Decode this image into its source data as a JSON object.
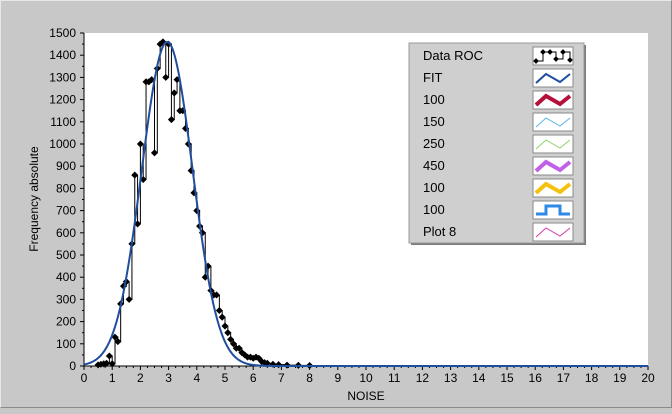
{
  "chart_data": {
    "type": "line",
    "xlabel": "NOISE",
    "ylabel": "Frequency absolute",
    "xlim": [
      0,
      20
    ],
    "ylim": [
      0,
      1500
    ],
    "xticks": [
      0,
      1,
      2,
      3,
      4,
      5,
      6,
      7,
      8,
      9,
      10,
      11,
      12,
      13,
      14,
      15,
      16,
      17,
      18,
      19,
      20
    ],
    "yticks": [
      0,
      100,
      200,
      300,
      400,
      500,
      600,
      700,
      800,
      900,
      1000,
      1100,
      1200,
      1300,
      1400,
      1500
    ],
    "legend_position": "top-right",
    "grid": false,
    "series": [
      {
        "name": "Data ROC",
        "color": "#000000",
        "style": "step-markers",
        "x": [
          0.5,
          0.6,
          0.7,
          0.8,
          0.9,
          1.0,
          1.1,
          1.2,
          1.3,
          1.4,
          1.5,
          1.6,
          1.7,
          1.8,
          1.9,
          2.0,
          2.1,
          2.2,
          2.3,
          2.4,
          2.5,
          2.6,
          2.7,
          2.8,
          2.9,
          3.0,
          3.1,
          3.2,
          3.3,
          3.4,
          3.5,
          3.6,
          3.7,
          3.8,
          3.9,
          4.0,
          4.1,
          4.2,
          4.3,
          4.4,
          4.5,
          4.6,
          4.7,
          4.8,
          4.9,
          5.0,
          5.1,
          5.2,
          5.3,
          5.4,
          5.5,
          5.6,
          5.7,
          5.8,
          5.9,
          6.0,
          6.1,
          6.2,
          6.3,
          6.4,
          6.5,
          6.7,
          6.9,
          7.2,
          7.6,
          8.0,
          9.0,
          10.0,
          11.0,
          12.0,
          13.0,
          14.0,
          15.0,
          16.0,
          17.0,
          18.0,
          19.0,
          20.0
        ],
        "y": [
          5,
          8,
          10,
          12,
          45,
          10,
          130,
          110,
          280,
          360,
          380,
          300,
          550,
          860,
          640,
          1000,
          840,
          1280,
          1280,
          1290,
          960,
          1340,
          1450,
          1460,
          1300,
          1450,
          1110,
          1230,
          1290,
          1150,
          1150,
          1070,
          1000,
          880,
          780,
          700,
          630,
          600,
          400,
          450,
          340,
          320,
          320,
          250,
          220,
          180,
          150,
          120,
          100,
          80,
          80,
          60,
          50,
          40,
          40,
          35,
          40,
          35,
          20,
          15,
          12,
          8,
          6,
          4,
          3,
          2,
          1,
          1,
          0,
          0,
          0,
          0,
          0,
          0,
          0,
          0,
          0,
          0
        ]
      },
      {
        "name": "FIT",
        "color": "#1f4e9e",
        "style": "line",
        "mean": 2.95,
        "sigma": 0.9,
        "peak": 1460,
        "x_range": [
          0,
          20
        ]
      },
      {
        "name": "100",
        "color": "#b3103a",
        "style": "thick-line"
      },
      {
        "name": "150",
        "color": "#5ab4e6",
        "style": "thin-line"
      },
      {
        "name": "250",
        "color": "#8fd46a",
        "style": "thin-line"
      },
      {
        "name": "450",
        "color": "#c061e6",
        "style": "thick-line"
      },
      {
        "name": "100",
        "color": "#f4c20d",
        "style": "thick-line"
      },
      {
        "name": "100",
        "color": "#2e8ae6",
        "style": "square-wave"
      },
      {
        "name": "Plot 8",
        "color": "#d63ca8",
        "style": "thin-line"
      }
    ]
  }
}
